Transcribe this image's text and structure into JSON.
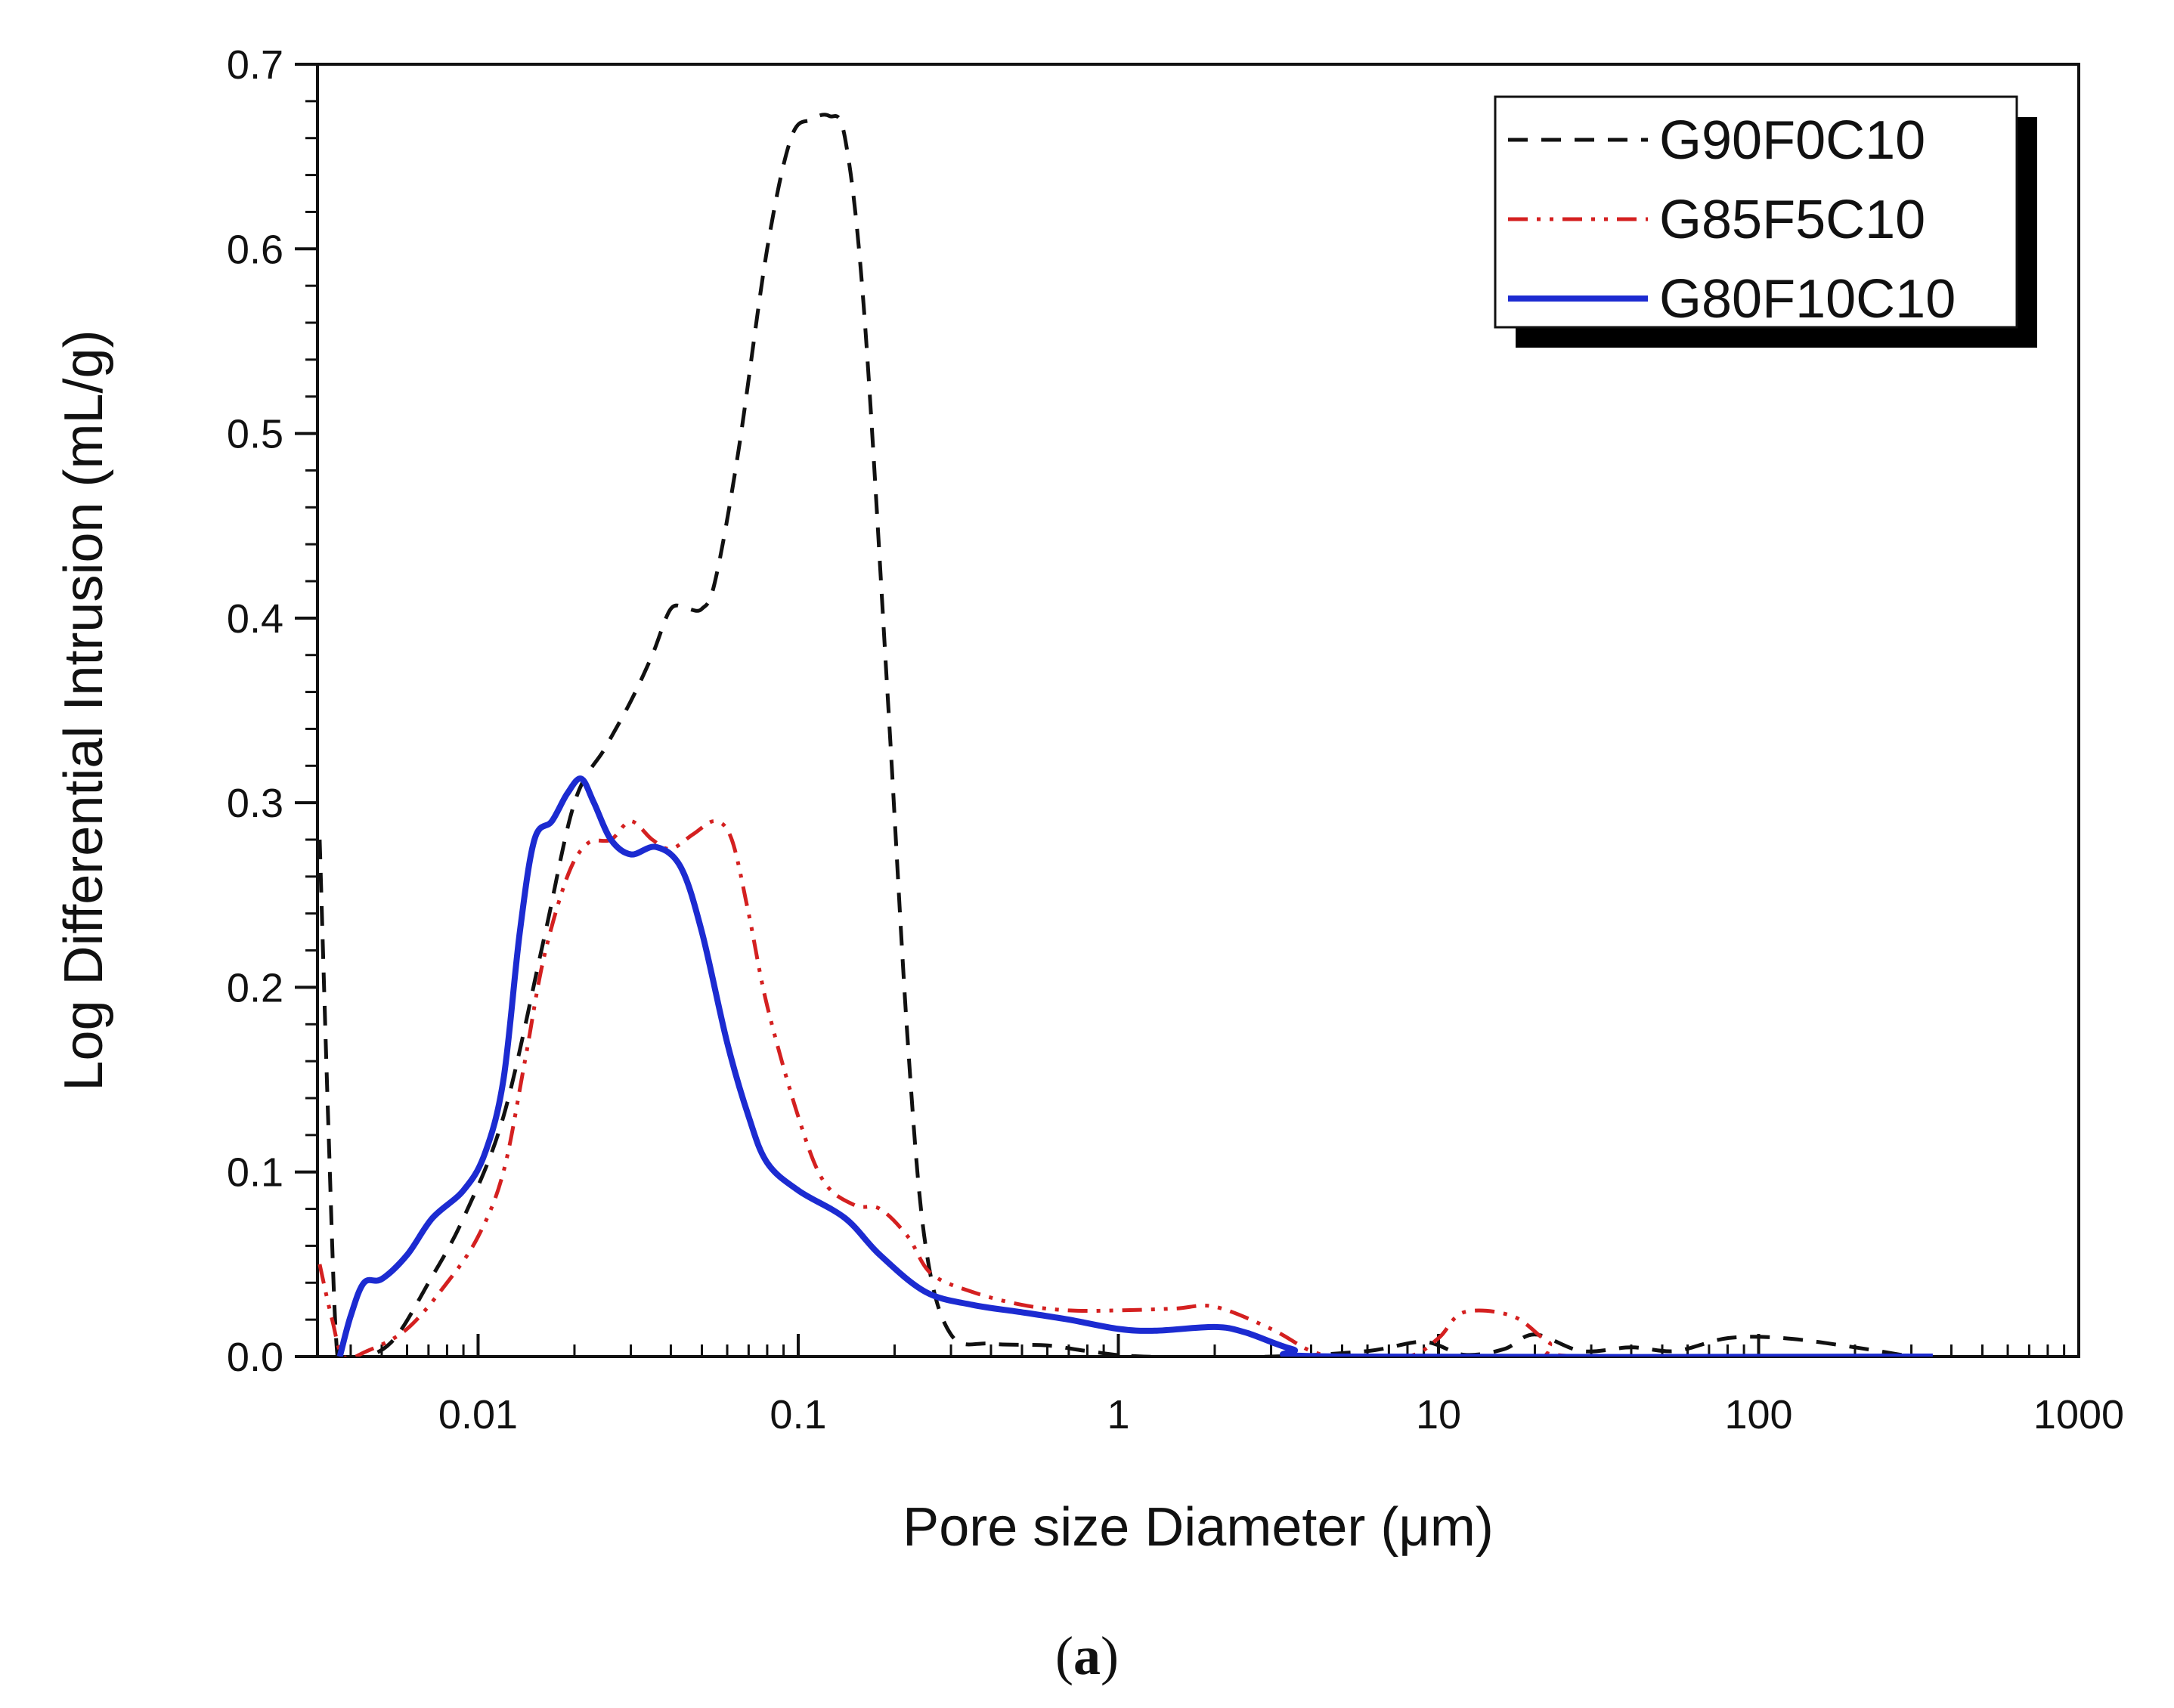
{
  "chart_data": {
    "type": "line",
    "xscale": "log",
    "xlabel": "Pore size Diameter (μm)",
    "ylabel": "Log Differential Intrusion (mL/g)",
    "xlim": [
      0.00315,
      1000
    ],
    "ylim": [
      0,
      0.7
    ],
    "x_ticks": [
      0.01,
      0.1,
      1,
      10,
      100,
      1000
    ],
    "x_tick_labels": [
      "0.01",
      "0.1",
      "1",
      "10",
      "100",
      "1000"
    ],
    "y_ticks": [
      0.0,
      0.1,
      0.2,
      0.3,
      0.4,
      0.5,
      0.6,
      0.7
    ],
    "y_tick_labels": [
      "0.0",
      "0.1",
      "0.2",
      "0.3",
      "0.4",
      "0.5",
      "0.6",
      "0.7"
    ],
    "legend_position": "top-right",
    "series": [
      {
        "name": "G90F0C10",
        "color": "#111111",
        "style": "dashed",
        "points": [
          [
            0.0032,
            0.28
          ],
          [
            0.0034,
            0.13
          ],
          [
            0.0036,
            0.01
          ],
          [
            0.0038,
            0.0
          ],
          [
            0.0045,
            0.0
          ],
          [
            0.0055,
            0.01
          ],
          [
            0.007,
            0.04
          ],
          [
            0.009,
            0.075
          ],
          [
            0.012,
            0.13
          ],
          [
            0.016,
            0.225
          ],
          [
            0.02,
            0.3
          ],
          [
            0.025,
            0.33
          ],
          [
            0.03,
            0.355
          ],
          [
            0.035,
            0.38
          ],
          [
            0.04,
            0.405
          ],
          [
            0.045,
            0.405
          ],
          [
            0.05,
            0.405
          ],
          [
            0.055,
            0.42
          ],
          [
            0.065,
            0.49
          ],
          [
            0.08,
            0.6
          ],
          [
            0.095,
            0.66
          ],
          [
            0.11,
            0.67
          ],
          [
            0.125,
            0.672
          ],
          [
            0.14,
            0.66
          ],
          [
            0.16,
            0.57
          ],
          [
            0.19,
            0.36
          ],
          [
            0.22,
            0.17
          ],
          [
            0.25,
            0.06
          ],
          [
            0.3,
            0.012
          ],
          [
            0.4,
            0.007
          ],
          [
            0.6,
            0.006
          ],
          [
            0.8,
            0.003
          ],
          [
            1.2,
            0.0
          ],
          [
            3,
            0.0
          ],
          [
            6,
            0.003
          ],
          [
            9,
            0.008
          ],
          [
            12,
            0.001
          ],
          [
            16,
            0.004
          ],
          [
            20,
            0.012
          ],
          [
            28,
            0.003
          ],
          [
            40,
            0.005
          ],
          [
            55,
            0.003
          ],
          [
            80,
            0.01
          ],
          [
            120,
            0.01
          ],
          [
            200,
            0.005
          ],
          [
            300,
            0.0
          ]
        ]
      },
      {
        "name": "G85F5C10",
        "color": "#d42020",
        "style": "dash-dot-dot",
        "points": [
          [
            0.0032,
            0.05
          ],
          [
            0.0035,
            0.02
          ],
          [
            0.0038,
            0.0
          ],
          [
            0.0045,
            0.003
          ],
          [
            0.006,
            0.015
          ],
          [
            0.008,
            0.04
          ],
          [
            0.01,
            0.065
          ],
          [
            0.012,
            0.1
          ],
          [
            0.014,
            0.16
          ],
          [
            0.016,
            0.215
          ],
          [
            0.019,
            0.26
          ],
          [
            0.022,
            0.278
          ],
          [
            0.026,
            0.28
          ],
          [
            0.03,
            0.29
          ],
          [
            0.035,
            0.28
          ],
          [
            0.04,
            0.275
          ],
          [
            0.047,
            0.283
          ],
          [
            0.055,
            0.29
          ],
          [
            0.062,
            0.28
          ],
          [
            0.07,
            0.24
          ],
          [
            0.08,
            0.19
          ],
          [
            0.1,
            0.13
          ],
          [
            0.12,
            0.095
          ],
          [
            0.15,
            0.082
          ],
          [
            0.18,
            0.08
          ],
          [
            0.22,
            0.065
          ],
          [
            0.26,
            0.045
          ],
          [
            0.35,
            0.035
          ],
          [
            0.5,
            0.028
          ],
          [
            0.7,
            0.025
          ],
          [
            1,
            0.025
          ],
          [
            1.5,
            0.026
          ],
          [
            2,
            0.027
          ],
          [
            3,
            0.015
          ],
          [
            4,
            0.003
          ],
          [
            5,
            0.0
          ],
          [
            8,
            0.0
          ],
          [
            10,
            0.01
          ],
          [
            12,
            0.024
          ],
          [
            17,
            0.022
          ],
          [
            22,
            0.008
          ],
          [
            28,
            0.0
          ],
          [
            350,
            0.0
          ]
        ]
      },
      {
        "name": "G80F10C10",
        "color": "#1c2bd1",
        "style": "solid",
        "points": [
          [
            0.0037,
            0.0
          ],
          [
            0.004,
            0.022
          ],
          [
            0.0044,
            0.04
          ],
          [
            0.005,
            0.042
          ],
          [
            0.006,
            0.055
          ],
          [
            0.0072,
            0.075
          ],
          [
            0.009,
            0.09
          ],
          [
            0.0105,
            0.11
          ],
          [
            0.012,
            0.15
          ],
          [
            0.0135,
            0.23
          ],
          [
            0.015,
            0.28
          ],
          [
            0.017,
            0.29
          ],
          [
            0.019,
            0.305
          ],
          [
            0.021,
            0.313
          ],
          [
            0.023,
            0.3
          ],
          [
            0.026,
            0.28
          ],
          [
            0.03,
            0.272
          ],
          [
            0.036,
            0.276
          ],
          [
            0.043,
            0.265
          ],
          [
            0.05,
            0.23
          ],
          [
            0.06,
            0.17
          ],
          [
            0.07,
            0.13
          ],
          [
            0.08,
            0.105
          ],
          [
            0.1,
            0.09
          ],
          [
            0.14,
            0.075
          ],
          [
            0.18,
            0.055
          ],
          [
            0.25,
            0.035
          ],
          [
            0.35,
            0.028
          ],
          [
            0.5,
            0.024
          ],
          [
            0.7,
            0.02
          ],
          [
            1,
            0.015
          ],
          [
            1.3,
            0.014
          ],
          [
            2,
            0.016
          ],
          [
            2.5,
            0.013
          ],
          [
            3.5,
            0.004
          ],
          [
            5,
            0.0
          ],
          [
            350,
            0.0
          ]
        ]
      }
    ]
  },
  "caption": {
    "open": "(",
    "letter": "a",
    "close": ")"
  }
}
